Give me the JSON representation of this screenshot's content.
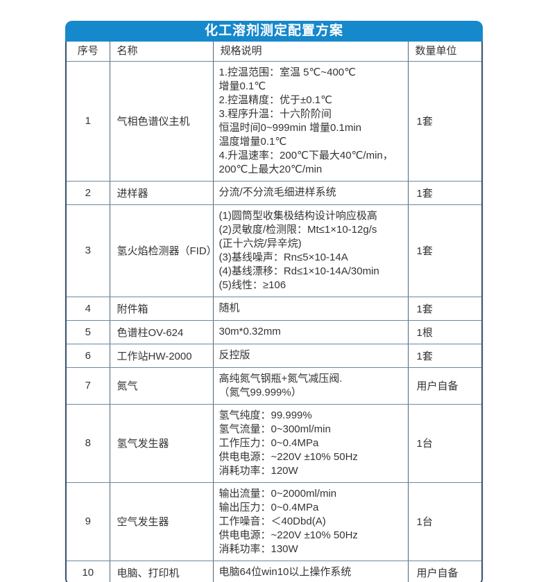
{
  "title": "化工溶剂测定配置方案",
  "colors": {
    "header_bg": "#1688cc",
    "header_text": "#ffffff",
    "outer_border": "#3d5166",
    "grid_line": "#5f7a95",
    "body_text": "#333333"
  },
  "table": {
    "headers": [
      "序号",
      "名称",
      "规格说明",
      "数量单位"
    ],
    "rows": [
      {
        "no": "1",
        "name": "气相色谱仪主机",
        "spec": [
          "1.控温范围：室温 5℃~400℃",
          "增量0.1℃",
          "2.控温精度：优于±0.1℃",
          "3.程序升温：十六阶阶间",
          "恒温时间0~999min 增量0.1min",
          "温度增量0.1℃",
          "4.升温速率：200℃下最大40℃/min，",
          "200℃上最大20℃/min"
        ],
        "qty": "1套"
      },
      {
        "no": "2",
        "name": "进样器",
        "spec": [
          "分流/不分流毛细进样系统"
        ],
        "qty": "1套"
      },
      {
        "no": "3",
        "name": "氢火焰检测器（FID）",
        "spec": [
          "(1)圆筒型收集极结构设计响应极高",
          "(2)灵敏度/检测限：Mt≤1×10-12g/s",
          "(正十六烷/异辛烷)",
          "(3)基线噪声：Rn≤5×10-14A",
          "(4)基线漂移：Rd≤1×10-14A/30min",
          "(5)线性：≥106"
        ],
        "qty": "1套"
      },
      {
        "no": "4",
        "name": "附件箱",
        "spec": [
          "随机"
        ],
        "qty": "1套"
      },
      {
        "no": "5",
        "name": "色谱柱OV-624",
        "spec": [
          "30m*0.32mm"
        ],
        "qty": "1根"
      },
      {
        "no": "6",
        "name": "工作站HW-2000",
        "spec": [
          "反控版"
        ],
        "qty": "1套"
      },
      {
        "no": "7",
        "name": "氮气",
        "spec": [
          "高纯氮气钢瓶+氮气减压阀.",
          "（氮气99.999%）"
        ],
        "qty": "用户自备"
      },
      {
        "no": "8",
        "name": "氢气发生器",
        "spec": [
          "氢气纯度：99.999%",
          "氢气流量：0~300ml/min",
          "工作压力：0~0.4MPa",
          "供电电源：~220V ±10% 50Hz",
          "消耗功率：120W"
        ],
        "qty": "1台"
      },
      {
        "no": "9",
        "name": "空气发生器",
        "spec": [
          "输出流量：0~2000ml/min",
          "输出压力：0~0.4MPa",
          "工作噪音：＜40Dbd(A)",
          "供电电源：~220V ±10% 50Hz",
          "消耗功率：130W"
        ],
        "qty": "1台"
      },
      {
        "no": "10",
        "name": "电脑、打印机",
        "spec": [
          "电脑64位win10以上操作系统"
        ],
        "qty": "用户自备"
      }
    ]
  }
}
